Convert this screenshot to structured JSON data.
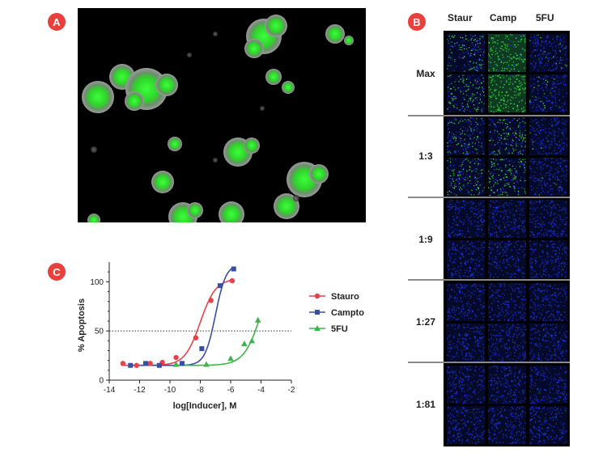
{
  "panels": {
    "a": "A",
    "b": "B",
    "c": "C"
  },
  "plate": {
    "columns": [
      "Staur",
      "Camp",
      "5FU"
    ],
    "rows": [
      "Max",
      "1:3",
      "1:9",
      "1:27",
      "1:81"
    ],
    "colors": {
      "blue": "#1f3cff",
      "green": "#3cff4a",
      "background": "#000000"
    }
  },
  "chart_data": {
    "type": "scatter",
    "ylabel": "% Apoptosis",
    "xlabel": "log[Inducer], M",
    "xlim": [
      -14,
      -2
    ],
    "ylim": [
      0,
      120
    ],
    "xticks": [
      "-14",
      "-12",
      "-10",
      "-8",
      "-6",
      "-4",
      "-2"
    ],
    "yticks": [
      "0",
      "50",
      "100"
    ],
    "reference_line": {
      "y": 50,
      "style": "dotted"
    },
    "legend_position": "right",
    "series": [
      {
        "name": "Stauro",
        "color": "#e8434a",
        "marker": "circle",
        "points": [
          [
            -13.1,
            17
          ],
          [
            -12.2,
            15
          ],
          [
            -11.3,
            17
          ],
          [
            -10.5,
            18
          ],
          [
            -9.6,
            23
          ],
          [
            -8.3,
            43
          ],
          [
            -7.3,
            81
          ],
          [
            -5.9,
            101
          ]
        ]
      },
      {
        "name": "Campto",
        "color": "#3a4ea3",
        "marker": "square",
        "points": [
          [
            -12.6,
            15
          ],
          [
            -11.6,
            17
          ],
          [
            -10.7,
            15
          ],
          [
            -9.2,
            17
          ],
          [
            -7.9,
            32
          ],
          [
            -6.7,
            96
          ],
          [
            -5.8,
            113
          ]
        ]
      },
      {
        "name": "5FU",
        "color": "#3db54a",
        "marker": "triangle",
        "points": [
          [
            -9.6,
            16
          ],
          [
            -7.6,
            16
          ],
          [
            -6.0,
            22
          ],
          [
            -5.1,
            37
          ],
          [
            -4.6,
            40
          ],
          [
            -4.2,
            61
          ]
        ]
      }
    ]
  }
}
